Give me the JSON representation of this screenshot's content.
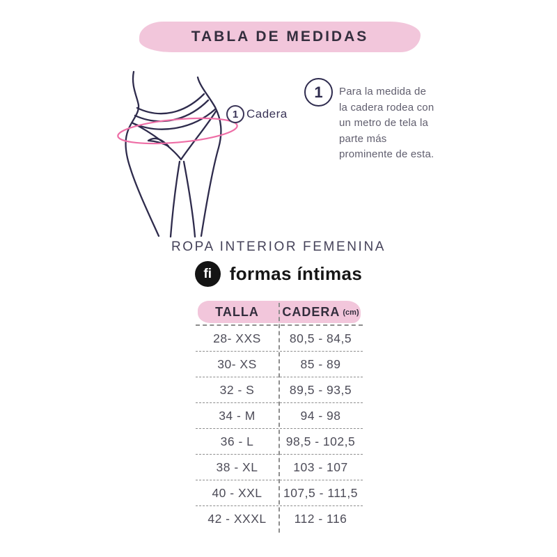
{
  "banner": {
    "title": "TABLA DE MEDIDAS"
  },
  "diagram": {
    "label_number": "1",
    "label_text": "Cadera"
  },
  "instruction": {
    "number": "1",
    "lines": [
      "Para la medida de",
      "la cadera rodea con",
      "un metro de tela la",
      "parte más",
      "prominente de esta."
    ]
  },
  "section": {
    "category": "ROPA INTERIOR FEMENINA",
    "logo_monogram": "fi",
    "brand": "formas íntimas"
  },
  "table": {
    "headers": {
      "size": "TALLA",
      "hip": "CADERA",
      "hip_unit": "(cm)"
    },
    "rows": [
      {
        "size": "28- XXS",
        "hip": "80,5 - 84,5"
      },
      {
        "size": "30- XS",
        "hip": "85 - 89"
      },
      {
        "size": "32 - S",
        "hip": "89,5 - 93,5"
      },
      {
        "size": "34 - M",
        "hip": "94 - 98"
      },
      {
        "size": "36 - L",
        "hip": "98,5 - 102,5"
      },
      {
        "size": "38 - XL",
        "hip": "103 - 107"
      },
      {
        "size": "40 - XXL",
        "hip": "107,5 - 111,5"
      },
      {
        "size": "42 - XXXL",
        "hip": "112 - 116"
      }
    ]
  },
  "colors": {
    "pink_light": "#f2c6db",
    "pink_accent": "#ee6ea6",
    "navy": "#2e2b4c",
    "heading_dark": "#342e3e",
    "body_gray": "#605e6e",
    "table_text": "#4d4c58",
    "dash_gray": "#8d8d8d"
  }
}
